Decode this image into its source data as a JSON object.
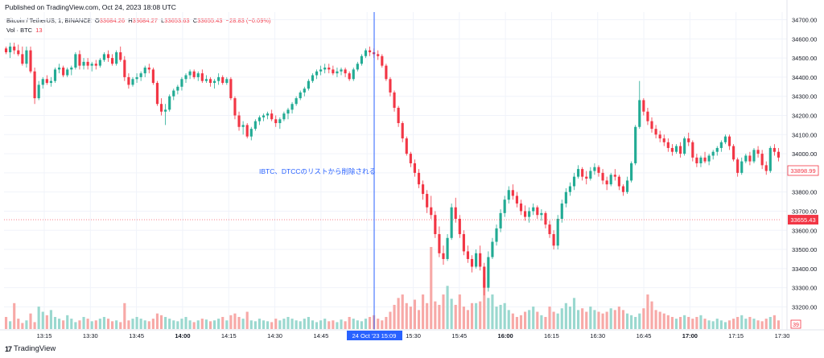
{
  "header": {
    "published": "Published on TradingView.com, Oct 24, 2023 18:08 UTC"
  },
  "legend": {
    "symbol": "Bitcoin / TetherUS, 1, BINANCE",
    "open_label": "O",
    "open": "33684.26",
    "high_label": "H",
    "high": "33684.27",
    "low_label": "L",
    "low": "33653.63",
    "close_label": "C",
    "close": "33655.43",
    "change": "−28.83 (−0.09%)",
    "vol_label": "Vol · BTC",
    "vol_value": "13"
  },
  "annotation": {
    "text": "IBTC、DTCCのリストから削除される",
    "color": "#2962ff"
  },
  "branding": {
    "logo": "tv-logo-icon",
    "text": "TradingView"
  },
  "colors": {
    "up": "#22ab94",
    "down": "#f23645",
    "vol_up": "#9ad8cf",
    "vol_down": "#f7a9a7",
    "crosshair": "#2962ff"
  },
  "chart_data": {
    "type": "candlestick",
    "symbol": "BTCUSDT",
    "interval": "1",
    "y_axis": {
      "ylim": [
        33080,
        34740
      ],
      "tick_labels": [
        "34700.00",
        "34600.00",
        "34500.00",
        "34400.00",
        "34300.00",
        "34200.00",
        "34100.00",
        "34000.00",
        "33900.00",
        "33800.00",
        "33700.00",
        "33600.00",
        "33500.00",
        "33400.00",
        "33300.00",
        "33200.00"
      ]
    },
    "x_axis": {
      "tick_labels": [
        "13:15",
        "13:30",
        "13:45",
        "14:00",
        "14:15",
        "14:30",
        "14:45",
        "15",
        "15:30",
        "15:45",
        "16:00",
        "16:15",
        "16:30",
        "16:45",
        "17:00",
        "17:15",
        "17:30"
      ],
      "bold_ticks": [
        "14:00",
        "16:00",
        "17:00"
      ]
    },
    "price_labels": [
      {
        "value": "33898.99",
        "style": "outline"
      },
      {
        "value": "33655.43",
        "style": "filled"
      }
    ],
    "volume_label": "39",
    "crosshair": {
      "label": "24 Oct '23  15:09"
    },
    "candles": [
      [
        34550,
        34560,
        34520,
        34530
      ],
      [
        34530,
        34580,
        34500,
        34560
      ],
      [
        34560,
        34580,
        34520,
        34540
      ],
      [
        34540,
        34570,
        34510,
        34520
      ],
      [
        34520,
        34560,
        34460,
        34470
      ],
      [
        34470,
        34560,
        34450,
        34540
      ],
      [
        34540,
        34560,
        34420,
        34430
      ],
      [
        34430,
        34450,
        34260,
        34290
      ],
      [
        34290,
        34380,
        34280,
        34360
      ],
      [
        34360,
        34400,
        34340,
        34390
      ],
      [
        34390,
        34410,
        34360,
        34370
      ],
      [
        34370,
        34400,
        34350,
        34380
      ],
      [
        34380,
        34450,
        34370,
        34440
      ],
      [
        34440,
        34470,
        34420,
        34450
      ],
      [
        34450,
        34460,
        34400,
        34410
      ],
      [
        34410,
        34450,
        34400,
        34440
      ],
      [
        34440,
        34460,
        34410,
        34450
      ],
      [
        34450,
        34530,
        34440,
        34520
      ],
      [
        34520,
        34540,
        34440,
        34460
      ],
      [
        34460,
        34500,
        34440,
        34480
      ],
      [
        34480,
        34500,
        34440,
        34460
      ],
      [
        34460,
        34480,
        34430,
        34470
      ],
      [
        34470,
        34490,
        34440,
        34460
      ],
      [
        34460,
        34500,
        34450,
        34490
      ],
      [
        34490,
        34530,
        34480,
        34520
      ],
      [
        34520,
        34540,
        34480,
        34500
      ],
      [
        34500,
        34520,
        34460,
        34470
      ],
      [
        34470,
        34540,
        34460,
        34530
      ],
      [
        34530,
        34560,
        34480,
        34490
      ],
      [
        34490,
        34510,
        34380,
        34400
      ],
      [
        34400,
        34420,
        34340,
        34360
      ],
      [
        34360,
        34400,
        34350,
        34390
      ],
      [
        34390,
        34420,
        34370,
        34400
      ],
      [
        34400,
        34430,
        34380,
        34420
      ],
      [
        34420,
        34460,
        34400,
        34450
      ],
      [
        34450,
        34470,
        34420,
        34440
      ],
      [
        34440,
        34450,
        34360,
        34370
      ],
      [
        34370,
        34380,
        34250,
        34260
      ],
      [
        34260,
        34290,
        34200,
        34220
      ],
      [
        34220,
        34260,
        34150,
        34230
      ],
      [
        34230,
        34310,
        34220,
        34300
      ],
      [
        34300,
        34340,
        34280,
        34330
      ],
      [
        34330,
        34360,
        34310,
        34350
      ],
      [
        34350,
        34400,
        34330,
        34390
      ],
      [
        34390,
        34420,
        34370,
        34410
      ],
      [
        34410,
        34440,
        34390,
        34430
      ],
      [
        34430,
        34440,
        34390,
        34400
      ],
      [
        34400,
        34430,
        34380,
        34420
      ],
      [
        34420,
        34440,
        34370,
        34380
      ],
      [
        34380,
        34410,
        34370,
        34390
      ],
      [
        34390,
        34400,
        34350,
        34370
      ],
      [
        34370,
        34390,
        34340,
        34380
      ],
      [
        34380,
        34420,
        34360,
        34400
      ],
      [
        34400,
        34410,
        34360,
        34370
      ],
      [
        34370,
        34400,
        34360,
        34390
      ],
      [
        34390,
        34400,
        34280,
        34290
      ],
      [
        34290,
        34300,
        34180,
        34200
      ],
      [
        34200,
        34220,
        34120,
        34140
      ],
      [
        34140,
        34170,
        34100,
        34150
      ],
      [
        34150,
        34160,
        34080,
        34090
      ],
      [
        34090,
        34140,
        34070,
        34130
      ],
      [
        34130,
        34180,
        34120,
        34170
      ],
      [
        34170,
        34200,
        34150,
        34190
      ],
      [
        34190,
        34210,
        34170,
        34200
      ],
      [
        34200,
        34220,
        34180,
        34210
      ],
      [
        34210,
        34230,
        34170,
        34180
      ],
      [
        34180,
        34200,
        34140,
        34160
      ],
      [
        34160,
        34190,
        34130,
        34180
      ],
      [
        34180,
        34220,
        34170,
        34210
      ],
      [
        34210,
        34240,
        34180,
        34230
      ],
      [
        34230,
        34270,
        34210,
        34260
      ],
      [
        34260,
        34300,
        34250,
        34290
      ],
      [
        34290,
        34330,
        34280,
        34320
      ],
      [
        34320,
        34350,
        34300,
        34340
      ],
      [
        34340,
        34390,
        34330,
        34380
      ],
      [
        34380,
        34420,
        34370,
        34410
      ],
      [
        34410,
        34440,
        34390,
        34430
      ],
      [
        34430,
        34460,
        34410,
        34440
      ],
      [
        34440,
        34470,
        34420,
        34450
      ],
      [
        34450,
        34470,
        34420,
        34440
      ],
      [
        34440,
        34460,
        34410,
        34420
      ],
      [
        34420,
        34450,
        34400,
        34430
      ],
      [
        34430,
        34450,
        34410,
        34440
      ],
      [
        34440,
        34450,
        34400,
        34420
      ],
      [
        34420,
        34430,
        34380,
        34390
      ],
      [
        34390,
        34450,
        34380,
        34440
      ],
      [
        34440,
        34480,
        34430,
        34470
      ],
      [
        34470,
        34520,
        34460,
        34510
      ],
      [
        34510,
        34550,
        34500,
        34540
      ],
      [
        34540,
        34560,
        34510,
        34530
      ],
      [
        34530,
        34550,
        34500,
        34520
      ],
      [
        34520,
        34540,
        34490,
        34510
      ],
      [
        34510,
        34520,
        34450,
        34460
      ],
      [
        34460,
        34470,
        34380,
        34390
      ],
      [
        34390,
        34400,
        34300,
        34320
      ],
      [
        34320,
        34330,
        34220,
        34240
      ],
      [
        34240,
        34250,
        34140,
        34160
      ],
      [
        34160,
        34170,
        34060,
        34080
      ],
      [
        34080,
        34090,
        33990,
        34000
      ],
      [
        34000,
        34010,
        33930,
        33950
      ],
      [
        33950,
        33970,
        33880,
        33900
      ],
      [
        33900,
        33920,
        33820,
        33840
      ],
      [
        33840,
        33860,
        33760,
        33790
      ],
      [
        33790,
        33810,
        33690,
        33720
      ],
      [
        33720,
        33780,
        33660,
        33680
      ],
      [
        33680,
        33700,
        33560,
        33580
      ],
      [
        33580,
        33620,
        33460,
        33480
      ],
      [
        33480,
        33520,
        33420,
        33450
      ],
      [
        33450,
        33580,
        33440,
        33560
      ],
      [
        33560,
        33740,
        33550,
        33720
      ],
      [
        33720,
        33770,
        33640,
        33660
      ],
      [
        33660,
        33680,
        33560,
        33580
      ],
      [
        33580,
        33600,
        33470,
        33490
      ],
      [
        33490,
        33520,
        33430,
        33450
      ],
      [
        33450,
        33470,
        33380,
        33410
      ],
      [
        33410,
        33500,
        33400,
        33480
      ],
      [
        33480,
        33520,
        33390,
        33410
      ],
      [
        33410,
        33430,
        33260,
        33300
      ],
      [
        33300,
        33490,
        33280,
        33460
      ],
      [
        33460,
        33560,
        33450,
        33540
      ],
      [
        33540,
        33630,
        33520,
        33610
      ],
      [
        33610,
        33710,
        33590,
        33690
      ],
      [
        33690,
        33780,
        33670,
        33760
      ],
      [
        33760,
        33830,
        33740,
        33810
      ],
      [
        33810,
        33840,
        33760,
        33780
      ],
      [
        33780,
        33800,
        33720,
        33740
      ],
      [
        33740,
        33760,
        33680,
        33700
      ],
      [
        33700,
        33730,
        33650,
        33670
      ],
      [
        33670,
        33720,
        33640,
        33700
      ],
      [
        33700,
        33740,
        33680,
        33720
      ],
      [
        33720,
        33730,
        33660,
        33680
      ],
      [
        33680,
        33710,
        33650,
        33690
      ],
      [
        33690,
        33700,
        33610,
        33630
      ],
      [
        33630,
        33650,
        33560,
        33580
      ],
      [
        33580,
        33600,
        33500,
        33520
      ],
      [
        33520,
        33680,
        33500,
        33660
      ],
      [
        33660,
        33760,
        33640,
        33740
      ],
      [
        33740,
        33820,
        33720,
        33800
      ],
      [
        33800,
        33850,
        33780,
        33830
      ],
      [
        33830,
        33900,
        33810,
        33880
      ],
      [
        33880,
        33940,
        33870,
        33920
      ],
      [
        33920,
        33930,
        33860,
        33880
      ],
      [
        33880,
        33910,
        33840,
        33870
      ],
      [
        33870,
        33930,
        33860,
        33910
      ],
      [
        33910,
        33950,
        33890,
        33930
      ],
      [
        33930,
        33940,
        33880,
        33900
      ],
      [
        33900,
        33920,
        33840,
        33860
      ],
      [
        33860,
        33880,
        33810,
        33840
      ],
      [
        33840,
        33900,
        33830,
        33890
      ],
      [
        33890,
        33920,
        33860,
        33880
      ],
      [
        33880,
        33890,
        33810,
        33830
      ],
      [
        33830,
        33840,
        33780,
        33800
      ],
      [
        33800,
        33880,
        33790,
        33860
      ],
      [
        33860,
        33960,
        33850,
        33950
      ],
      [
        33950,
        34150,
        33940,
        34140
      ],
      [
        34140,
        34380,
        34130,
        34280
      ],
      [
        34280,
        34290,
        34200,
        34220
      ],
      [
        34220,
        34240,
        34150,
        34170
      ],
      [
        34170,
        34190,
        34110,
        34130
      ],
      [
        34130,
        34150,
        34080,
        34100
      ],
      [
        34100,
        34120,
        34060,
        34080
      ],
      [
        34080,
        34100,
        34040,
        34060
      ],
      [
        34060,
        34080,
        34010,
        34030
      ],
      [
        34030,
        34050,
        33990,
        34010
      ],
      [
        34010,
        34050,
        34000,
        34040
      ],
      [
        34040,
        34060,
        33980,
        34000
      ],
      [
        34000,
        34090,
        33990,
        34080
      ],
      [
        34080,
        34110,
        34040,
        34060
      ],
      [
        34060,
        34070,
        33960,
        33980
      ],
      [
        33980,
        34000,
        33930,
        33950
      ],
      [
        33950,
        33990,
        33930,
        33980
      ],
      [
        33980,
        34010,
        33950,
        33960
      ],
      [
        33960,
        34000,
        33940,
        33990
      ],
      [
        33990,
        34020,
        33970,
        34010
      ],
      [
        34010,
        34040,
        33990,
        34030
      ],
      [
        34030,
        34070,
        34010,
        34060
      ],
      [
        34060,
        34100,
        34050,
        34090
      ],
      [
        34090,
        34100,
        34020,
        34040
      ],
      [
        34040,
        34050,
        33960,
        33970
      ],
      [
        33970,
        33980,
        33880,
        33900
      ],
      [
        33900,
        33980,
        33890,
        33960
      ],
      [
        33960,
        34000,
        33950,
        33990
      ],
      [
        33990,
        34010,
        33940,
        33960
      ],
      [
        33960,
        34030,
        33950,
        34020
      ],
      [
        34020,
        34040,
        33980,
        34000
      ],
      [
        34000,
        34020,
        33920,
        33940
      ],
      [
        33940,
        33960,
        33890,
        33910
      ],
      [
        33910,
        34040,
        33900,
        34030
      ],
      [
        34030,
        34050,
        33990,
        34010
      ],
      [
        34010,
        34030,
        33960,
        33980
      ]
    ],
    "volumes": [
      14,
      9,
      30,
      12,
      7,
      10,
      18,
      8,
      26,
      20,
      16,
      22,
      14,
      12,
      10,
      16,
      12,
      8,
      10,
      14,
      12,
      9,
      10,
      12,
      14,
      12,
      9,
      10,
      8,
      30,
      10,
      12,
      14,
      12,
      10,
      9,
      12,
      18,
      16,
      14,
      12,
      10,
      9,
      12,
      14,
      10,
      8,
      10,
      12,
      11,
      9,
      10,
      12,
      14,
      10,
      16,
      18,
      14,
      12,
      20,
      10,
      9,
      12,
      10,
      9,
      8,
      12,
      10,
      12,
      14,
      12,
      10,
      9,
      12,
      14,
      10,
      8,
      10,
      12,
      9,
      10,
      8,
      11,
      9,
      14,
      12,
      10,
      9,
      12,
      14,
      16,
      12,
      10,
      14,
      20,
      28,
      36,
      40,
      30,
      26,
      34,
      22,
      40,
      30,
      95,
      32,
      28,
      40,
      50,
      35,
      28,
      40,
      26,
      22,
      30,
      30,
      32,
      60,
      36,
      40,
      26,
      28,
      30,
      22,
      18,
      14,
      16,
      20,
      22,
      26,
      20,
      16,
      14,
      26,
      20,
      18,
      24,
      30,
      26,
      36,
      22,
      24,
      20,
      26,
      22,
      20,
      18,
      20,
      24,
      22,
      26,
      22,
      18,
      16,
      14,
      18,
      24,
      40,
      32,
      22,
      20,
      18,
      16,
      14,
      12,
      14,
      16,
      14,
      12,
      14,
      16,
      12,
      10,
      9,
      12,
      10,
      8,
      10,
      12,
      14,
      16,
      12,
      14,
      12,
      10,
      9,
      12,
      14,
      16,
      10,
      9,
      12,
      10,
      8,
      9,
      10,
      12
    ]
  }
}
